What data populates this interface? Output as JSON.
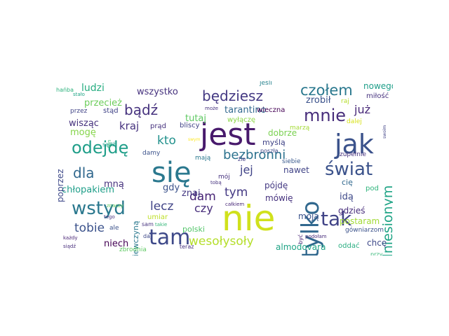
{
  "words": {
    "nie": {
      "text": "nie",
      "color": "#d0e11c"
    },
    "sie": {
      "text": "się",
      "color": "#2a788e"
    },
    "jest": {
      "text": "jest",
      "color": "#481a6c"
    },
    "jak": {
      "text": "jak",
      "color": "#3b528b"
    },
    "tylko": {
      "text": "tylko",
      "color": "#31688e"
    },
    "tam": {
      "text": "tam",
      "color": "#3e4989"
    },
    "wstyd": {
      "text": "wstyd",
      "color": "#2a788e"
    },
    "odejde": {
      "text": "odejdę",
      "color": "#1f9e89"
    },
    "swiat": {
      "text": "świat",
      "color": "#3b528b"
    },
    "tak": {
      "text": "tak",
      "color": "#414487"
    },
    "mnie": {
      "text": "mnie",
      "color": "#472d7b"
    },
    "bedziesz": {
      "text": "będziesz",
      "color": "#443983"
    },
    "bezbronni": {
      "text": "bezbronni",
      "color": "#2c728e"
    },
    "podniesionym": {
      "text": "podniesionym",
      "color": "#20a486"
    },
    "czolem": {
      "text": "czołem",
      "color": "#2a788e"
    },
    "badz": {
      "text": "bądź",
      "color": "#46327e"
    },
    "dla": {
      "text": "dla",
      "color": "#31688e"
    },
    "wesolysoly": {
      "text": "wesołysoły",
      "color": "#b5de2b"
    },
    "tobie": {
      "text": "tobie",
      "color": "#3b528b"
    },
    "lecz": {
      "text": "lecz",
      "color": "#414487"
    },
    "dam": {
      "text": "dam",
      "color": "#482576"
    },
    "czy": {
      "text": "czy",
      "color": "#472d7b"
    },
    "tym": {
      "text": "tym",
      "color": "#443983"
    },
    "kto": {
      "text": "kto",
      "color": "#21918c"
    },
    "kraj": {
      "text": "kraj",
      "color": "#46327e"
    },
    "jej": {
      "text": "jej",
      "color": "#404387"
    },
    "juz": {
      "text": "już",
      "color": "#482878"
    },
    "ludzi": {
      "text": "ludzi",
      "color": "#27ad81"
    },
    "wszystko": {
      "text": "wszystko",
      "color": "#46327e"
    },
    "zrobil": {
      "text": "zrobił",
      "color": "#3b528b"
    },
    "tutaj": {
      "text": "tutaj",
      "color": "#5ec962"
    },
    "tarantino": {
      "text": "tarantino",
      "color": "#31688e"
    },
    "przeciez": {
      "text": "przecież",
      "color": "#6ccd5a"
    },
    "stad": {
      "text": "stąd",
      "color": "#404387"
    },
    "wiszac": {
      "text": "wisząc",
      "color": "#46327e"
    },
    "moge": {
      "text": "mogę",
      "color": "#85d54a"
    },
    "mna": {
      "text": "mną",
      "color": "#46327e"
    },
    "dobrze": {
      "text": "dobrze",
      "color": "#7ad151"
    },
    "mysla": {
      "text": "myślą",
      "color": "#414487"
    },
    "nowego": {
      "text": "nowego",
      "color": "#1f9e89"
    },
    "milosc": {
      "text": "miłość",
      "color": "#46327e"
    },
    "chlopakiem": {
      "text": "chłopakiem",
      "color": "#1f9e89"
    },
    "gdy": {
      "text": "gdy",
      "color": "#3b528b"
    },
    "znaj": {
      "text": "znaj",
      "color": "#443983"
    },
    "nawet": {
      "text": "nawet",
      "color": "#414487"
    },
    "pojde": {
      "text": "pójdę",
      "color": "#443983"
    },
    "ida": {
      "text": "idą",
      "color": "#3e4989"
    },
    "mowie": {
      "text": "mówię",
      "color": "#46327e"
    },
    "moja": {
      "text": "moją",
      "color": "#3b528b"
    },
    "gdzies": {
      "text": "gdzieś",
      "color": "#472d7b"
    },
    "postaram": {
      "text": "postaram",
      "color": "#a2da37"
    },
    "niech": {
      "text": "niech",
      "color": "#440154"
    },
    "almodovara": {
      "text": "almodovara",
      "color": "#20a486"
    },
    "oddac": {
      "text": "oddać",
      "color": "#28ae80"
    },
    "chce": {
      "text": "chcę",
      "color": "#3e4989"
    },
    "polski": {
      "text": "polski",
      "color": "#52c569"
    },
    "umiar": {
      "text": "umiar",
      "color": "#bddf26"
    },
    "dziewczyna": {
      "text": "dziewczyną",
      "color": "#2a788e"
    },
    "poprzez": {
      "text": "poprzez",
      "color": "#3e4989"
    },
    "blisci": {
      "text": "bliscy",
      "color": "#414487"
    },
    "prad": {
      "text": "prąd",
      "color": "#46327e"
    },
    "wylacze": {
      "text": "wyłączę",
      "color": "#8bd646"
    },
    "wieczna": {
      "text": "wieczna",
      "color": "#440154"
    },
    "marza": {
      "text": "marzą",
      "color": "#a5db36"
    },
    "damy": {
      "text": "damy",
      "color": "#3b528b"
    },
    "maja": {
      "text": "mają",
      "color": "#2a788e"
    },
    "moj": {
      "text": "mój",
      "color": "#46327e"
    },
    "zle": {
      "text": "źle",
      "color": "#433e85"
    },
    "posza": {
      "text": "poszła",
      "color": "#3e4989"
    },
    "siebie": {
      "text": "siebie",
      "color": "#38588c"
    },
    "zupelnie": {
      "text": "zupełnie",
      "color": "#46327e"
    },
    "raj": {
      "text": "raj",
      "color": "#b5de2b"
    },
    "dalej": {
      "text": "dalej",
      "color": "#d8e219"
    },
    "pod": {
      "text": "pod",
      "color": "#2fb47c"
    },
    "cie": {
      "text": "cię",
      "color": "#31688e"
    },
    "byc": {
      "text": "być",
      "color": "#482475"
    },
    "gowniarzom": {
      "text": "gówniarzom",
      "color": "#3b528b"
    },
    "przy": {
      "text": "przy",
      "color": "#35b779"
    },
    "swoim": {
      "text": "swoim",
      "color": "#404387"
    },
    "jesli": {
      "text": "jeśli",
      "color": "#26828e"
    },
    "halba": {
      "text": "hańba",
      "color": "#2db27d"
    },
    "stalo": {
      "text": "stało",
      "color": "#20a486"
    },
    "przez": {
      "text": "przez",
      "color": "#414487"
    },
    "moze": {
      "text": "może",
      "color": "#46327e"
    },
    "ten": {
      "text": "ten",
      "color": "#3dbc74"
    },
    "sadz": {
      "text": "sądź",
      "color": "#1f9e89"
    },
    "znaczy": {
      "text": "znaczy",
      "color": "#5ec962"
    },
    "tego": {
      "text": "tego",
      "color": "#46327e"
    },
    "ale": {
      "text": "ale",
      "color": "#3b528b"
    },
    "kazdy": {
      "text": "każdy",
      "color": "#482475"
    },
    "siadz": {
      "text": "siądź",
      "color": "#472d7b"
    },
    "zbrodnia": {
      "text": "zbrodnia",
      "color": "#5ec962"
    },
    "daj": {
      "text": "daj",
      "color": "#3e4989"
    },
    "sam": {
      "text": "sam",
      "color": "#46327e"
    },
    "takie": {
      "text": "takie",
      "color": "#35b779"
    },
    "teraz": {
      "text": "teraz",
      "color": "#46327e"
    },
    "toba": {
      "text": "tobą",
      "color": "#46327e"
    },
    "calkiem": {
      "text": "całkiem",
      "color": "#482878"
    },
    "podolam": {
      "text": "podołam",
      "color": "#472d7b"
    },
    "swym": {
      "text": "swym",
      "color": "#fde725"
    }
  }
}
